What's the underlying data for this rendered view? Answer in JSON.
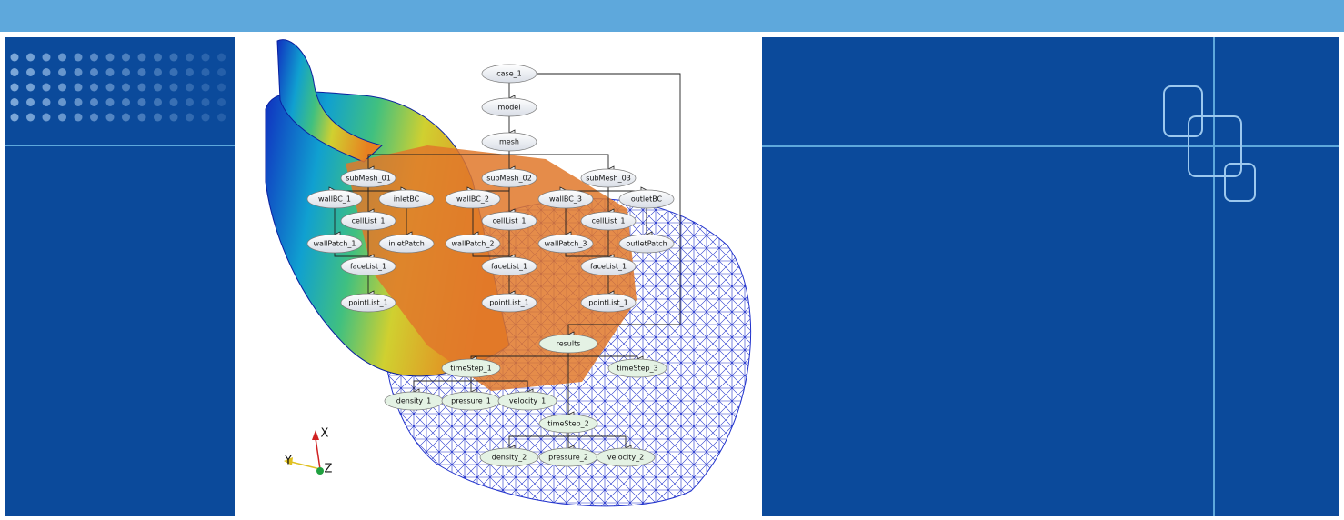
{
  "axes": {
    "x": "X",
    "y": "Y",
    "z": "Z"
  },
  "nodes": [
    {
      "label": "case_1"
    },
    {
      "label": "model"
    },
    {
      "label": "mesh"
    },
    {
      "label": "subMesh_01"
    },
    {
      "label": "subMesh_02"
    },
    {
      "label": "subMesh_03"
    },
    {
      "label": "wallBC_1"
    },
    {
      "label": "inletBC"
    },
    {
      "label": "wallBC_2"
    },
    {
      "label": "wallBC_3"
    },
    {
      "label": "outletBC"
    },
    {
      "label": "cellList_1"
    },
    {
      "label": "cellList_1"
    },
    {
      "label": "cellList_1"
    },
    {
      "label": "wallPatch_1"
    },
    {
      "label": "inletPatch"
    },
    {
      "label": "wallPatch_2"
    },
    {
      "label": "wallPatch_3"
    },
    {
      "label": "outletPatch"
    },
    {
      "label": "faceList_1"
    },
    {
      "label": "faceList_1"
    },
    {
      "label": "faceList_1"
    },
    {
      "label": "pointList_1"
    },
    {
      "label": "pointList_1"
    },
    {
      "label": "pointList_1"
    },
    {
      "label": "results"
    },
    {
      "label": "timeStep_1"
    },
    {
      "label": "timeStep_3"
    },
    {
      "label": "density_1"
    },
    {
      "label": "pressure_1"
    },
    {
      "label": "velocity_1"
    },
    {
      "label": "timeStep_2"
    },
    {
      "label": "density_2"
    },
    {
      "label": "pressure_2"
    },
    {
      "label": "velocity_2"
    }
  ]
}
